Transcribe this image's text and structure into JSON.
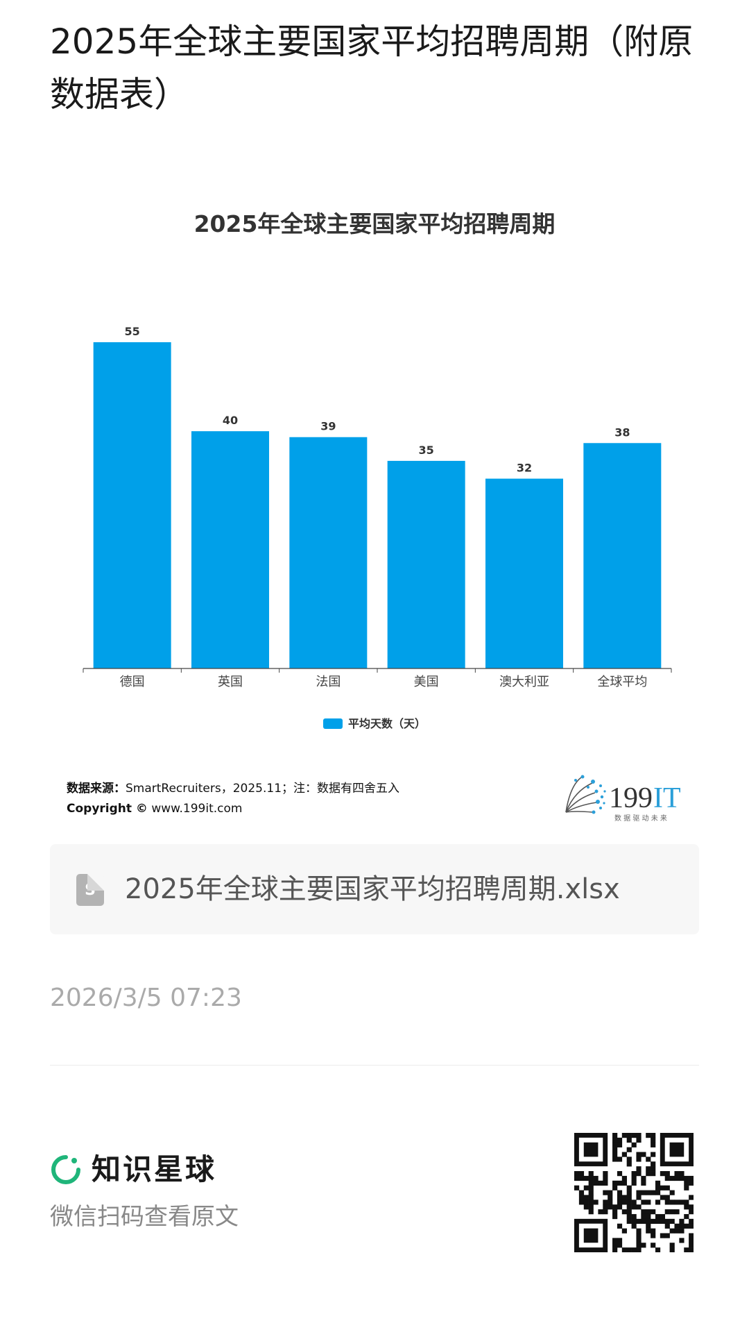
{
  "page_title": "2025年全球主要国家平均招聘周期（附原数据表）",
  "chart_data": {
    "type": "bar",
    "title": "2025年全球主要国家平均招聘周期",
    "categories": [
      "德国",
      "英国",
      "法国",
      "美国",
      "澳大利亚",
      "全球平均"
    ],
    "series": [
      {
        "name": "平均天数（天）",
        "values": [
          55,
          40,
          39,
          35,
          32,
          38
        ]
      }
    ],
    "xlabel": "",
    "ylabel": "",
    "ylim": [
      0,
      60
    ],
    "grid": false,
    "legend": "bottom",
    "bar_color": "#00a0e9"
  },
  "source": {
    "label": "数据来源：",
    "text": "SmartRecruiters，2025.11；注：数据有四舍五入",
    "copyright_label": "Copyright ©",
    "copyright_site": "www.199it.com"
  },
  "logo": {
    "name": "199IT",
    "digits": "199",
    "letters": "IT",
    "tagline": "数 据 驱 动 未 来"
  },
  "file": {
    "icon": "spreadsheet-file-icon",
    "icon_letter": "S",
    "name": "2025年全球主要国家平均招聘周期.xlsx"
  },
  "timestamp": "2026/3/5 07:23",
  "footer": {
    "brand_name": "知识星球",
    "brand_color": "#1fb57a",
    "scan_text": "微信扫码查看原文",
    "qr_icon": "qr-code-icon"
  }
}
